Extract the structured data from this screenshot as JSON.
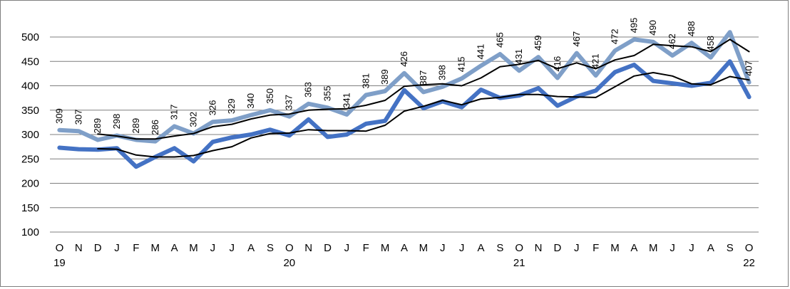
{
  "chart_data": {
    "type": "line",
    "title": "",
    "xlabel": "",
    "ylabel": "",
    "ylim": [
      100,
      500
    ],
    "yticks": [
      "100",
      "150",
      "200",
      "250",
      "300",
      "350",
      "400",
      "450",
      "500"
    ],
    "grid": true,
    "legend": "none",
    "categories": [
      "O",
      "N",
      "D",
      "J",
      "F",
      "M",
      "A",
      "M",
      "J",
      "J",
      "A",
      "S",
      "O",
      "N",
      "D",
      "J",
      "F",
      "M",
      "A",
      "M",
      "J",
      "J",
      "A",
      "S",
      "O",
      "N",
      "D",
      "J",
      "F",
      "M",
      "A",
      "M",
      "J",
      "J",
      "A",
      "S",
      "O"
    ],
    "year_labels": [
      {
        "index": 0,
        "label": "19"
      },
      {
        "index": 12,
        "label": "20"
      },
      {
        "index": 24,
        "label": "21"
      },
      {
        "index": 36,
        "label": "22"
      }
    ],
    "series": [
      {
        "values": [
          309,
          307,
          289,
          298,
          289,
          286,
          317,
          302,
          326,
          329,
          340,
          350,
          337,
          363,
          355,
          341,
          381,
          389,
          426,
          387,
          398,
          415,
          441,
          465,
          431,
          459,
          416,
          467,
          421,
          472,
          495,
          490,
          462,
          488,
          458,
          510,
          407
        ],
        "labels": [
          "309",
          "307",
          "289",
          "298",
          "289",
          "286",
          "317",
          "302",
          "326",
          "329",
          "340",
          "350",
          "337",
          "363",
          "355",
          "341",
          "381",
          "389",
          "426",
          "387",
          "398",
          "415",
          "441",
          "465",
          "431",
          "459",
          "416",
          "467",
          "421",
          "472",
          "495",
          "490",
          "462",
          "488",
          "458",
          "",
          "407"
        ],
        "color": "#7f9fc8"
      },
      {
        "values": [
          273,
          270,
          269,
          272,
          234,
          254,
          272,
          245,
          285,
          294,
          300,
          310,
          298,
          331,
          295,
          300,
          322,
          328,
          391,
          354,
          368,
          356,
          392,
          375,
          380,
          395,
          359,
          378,
          390,
          428,
          443,
          410,
          405,
          400,
          406,
          450,
          377
        ],
        "color": "#4472c4"
      },
      {
        "values": [
          null,
          null,
          301,
          297,
          291,
          291,
          297,
          302,
          316,
          321,
          332,
          340,
          342,
          350,
          352,
          353,
          360,
          370,
          399,
          402,
          404,
          400,
          416,
          439,
          444,
          452,
          435,
          447,
          435,
          453,
          462,
          485,
          482,
          480,
          470,
          495,
          470
        ],
        "color": "#000000"
      },
      {
        "values": [
          null,
          null,
          271,
          270,
          258,
          254,
          254,
          257,
          267,
          275,
          293,
          302,
          303,
          310,
          308,
          308,
          307,
          319,
          348,
          358,
          370,
          361,
          373,
          376,
          382,
          382,
          378,
          377,
          376,
          398,
          420,
          427,
          420,
          404,
          402,
          419,
          412
        ],
        "color": "#000000"
      }
    ]
  }
}
